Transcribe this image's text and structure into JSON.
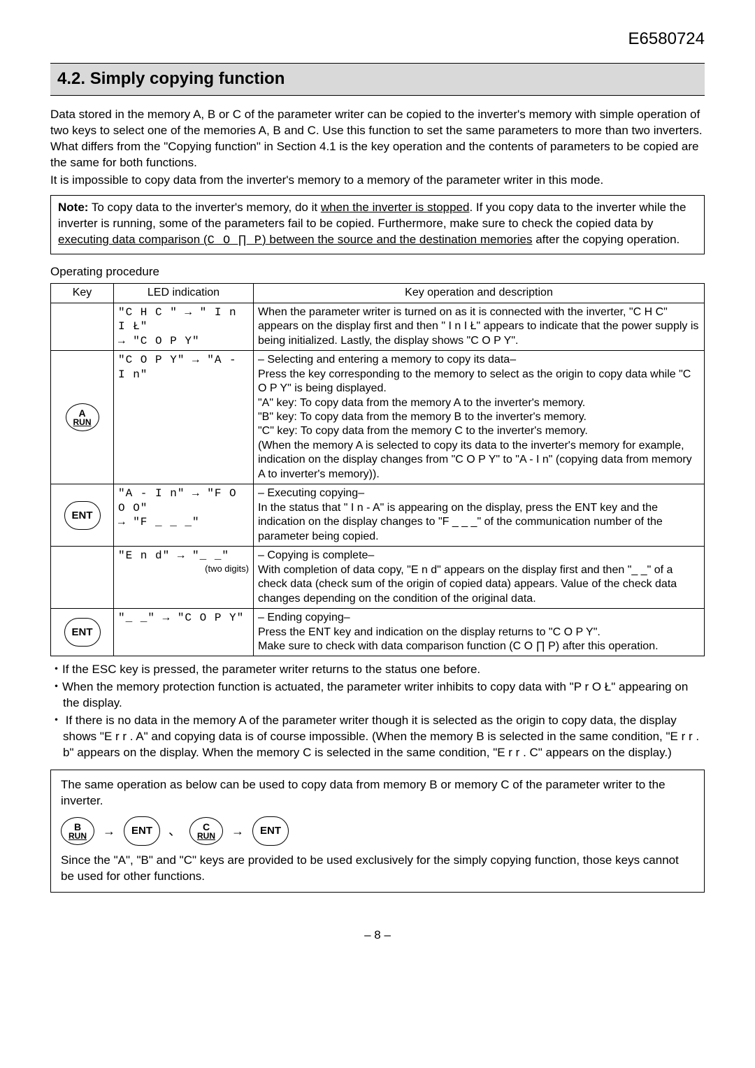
{
  "doc_id": "E6580724",
  "section_title": "4.2. Simply copying function",
  "para1": "Data stored in the memory A, B or C of the parameter writer can be copied to the inverter's memory with simple operation of two keys to select one of the memories A, B and C. Use this function to set the same parameters to more than two inverters. What differs from the \"Copying function\" in Section 4.1 is the key operation and the contents of parameters to be copied are the same for both functions.",
  "para2": "It is impossible to copy data from the inverter's memory to a memory of the parameter writer in this mode.",
  "note_label": "Note:",
  "note_text_a": " To copy data to the inverter's memory, do it ",
  "note_u1": "when the inverter is stopped",
  "note_text_b": ". If you copy data to the inverter while the inverter is running, some of the parameters fail to be copied. Furthermore, make sure to check the copied data by ",
  "note_u2": "executing data comparison (",
  "note_code": "C O ∏ P",
  "note_u3": ") between the source and the destination memories",
  "note_text_c": " after the copying operation.",
  "proc_label": "Operating procedure",
  "th_key": "Key",
  "th_led": "LED indication",
  "th_desc": "Key operation and description",
  "row1": {
    "led": "\"C H C  \" → \" I n I Ł\"\n→ \"C O P Y\"",
    "desc": "When the parameter writer is turned on as it is connected with the inverter, \"C H C\" appears on the display first and then \" I n I Ł\" appears to indicate that the power supply is being initialized. Lastly, the display shows \"C O P Y\"."
  },
  "row2": {
    "key_main": "A",
    "key_sub": "RUN",
    "led": "\"C O P Y\" → \"A -  I n\"",
    "desc": "– Selecting and entering a memory to copy its data–\nPress the key corresponding to the memory to select as the origin to copy data while \"C O P Y\" is being displayed.\n\"A\" key: To copy data from the memory A to the inverter's memory.\n\"B\" key: To copy data from the memory B to the inverter's memory.\n\"C\" key: To copy data from the memory C to the inverter's memory.\n (When the memory A is selected to copy its data to the inverter's memory for example, indication on the display changes from \"C O P Y\" to \"A -  I n\" (copying data from memory A to inverter's memory))."
  },
  "row3": {
    "key": "ENT",
    "led": "\"A -  I n\" → \"F O O O\"\n→ \"F _ _ _\"",
    "desc": "– Executing copying–\nIn the status that \" I n - A\" is appearing on the display, press the ENT key and the indication on the display changes to \"F _ _ _\" of the communication number of the parameter being copied."
  },
  "row4": {
    "led_a": "\"E n d\" → \"_ _\"",
    "led_b": "(two digits)",
    "desc": "– Copying is complete–\nWith completion of data copy, \"E n d\" appears on the display first and then \"_ _\" of a check data (check sum of the origin of copied data) appears. Value of the check data changes depending on the condition of the original data."
  },
  "row5": {
    "key": "ENT",
    "led": "\"_ _\" → \"C O P Y\"",
    "desc": "– Ending copying–\nPress the ENT key and indication on the display returns to \"C O P Y\".\nMake sure to check with data comparison function (C O ∏ P) after this operation."
  },
  "bullet1": "・If the ESC key is pressed, the parameter writer returns to the status one before.",
  "bullet2": "・When the memory protection function is actuated, the parameter writer inhibits to copy data with \"P r O Ł\" appearing on the display.",
  "bullet3": "・ If there is no data in the memory A of the parameter writer though it is selected as the origin to copy data, the display shows \"E r r . A\" and copying data is of course impossible. (When the memory B is selected in the same condition, \"E r r . b\" appears on the display. When the memory C is selected in the same condition, \"E r r . C\" appears on the display.)",
  "info1": "The same operation as below can be used to copy data from memory B or memory C of the parameter writer to the inverter.",
  "key_b_main": "B",
  "key_b_sub": "RUN",
  "key_ent": "ENT",
  "key_c_main": "C",
  "key_c_sub": "RUN",
  "info2": "Since the \"A\", \"B\" and \"C\" keys are provided to be used exclusively for the simply copying function, those keys cannot be used for other functions.",
  "page": "– 8 –",
  "arrow": "→",
  "comma": "、"
}
